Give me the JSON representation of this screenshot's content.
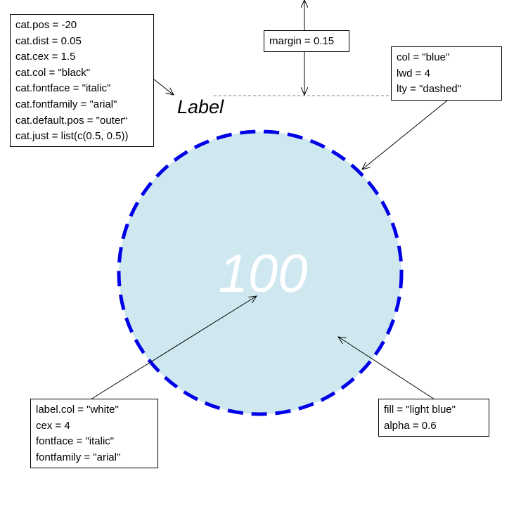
{
  "diagram": {
    "category_label": "Label",
    "circle_value_label": "100",
    "colors": {
      "circle_fill": "#cfe8f0",
      "circle_border": "#0000e6",
      "value_label": "#ffffff",
      "category_label": "#000000",
      "guide_line": "#808080",
      "arrows": "#000000"
    }
  },
  "annotations": {
    "category_params": [
      "cat.pos = -20",
      "cat.dist = 0.05",
      "cat.cex = 1.5",
      "cat.col = \"black\"",
      "cat.fontface = \"italic\"",
      "cat.fontfamily = \"arial\"",
      "cat.default.pos = \"outer“",
      "cat.just = list(c(0.5, 0.5))"
    ],
    "margin_param": "margin = 0.15",
    "border_params": [
      "col = \"blue\"",
      "lwd = 4",
      "lty = \"dashed\""
    ],
    "label_params": [
      "label.col = \"white\"",
      "cex = 4",
      "fontface = \"italic\"",
      "fontfamily = \"arial\""
    ],
    "fill_params": [
      "fill = \"light blue\"",
      "alpha = 0.6"
    ]
  }
}
